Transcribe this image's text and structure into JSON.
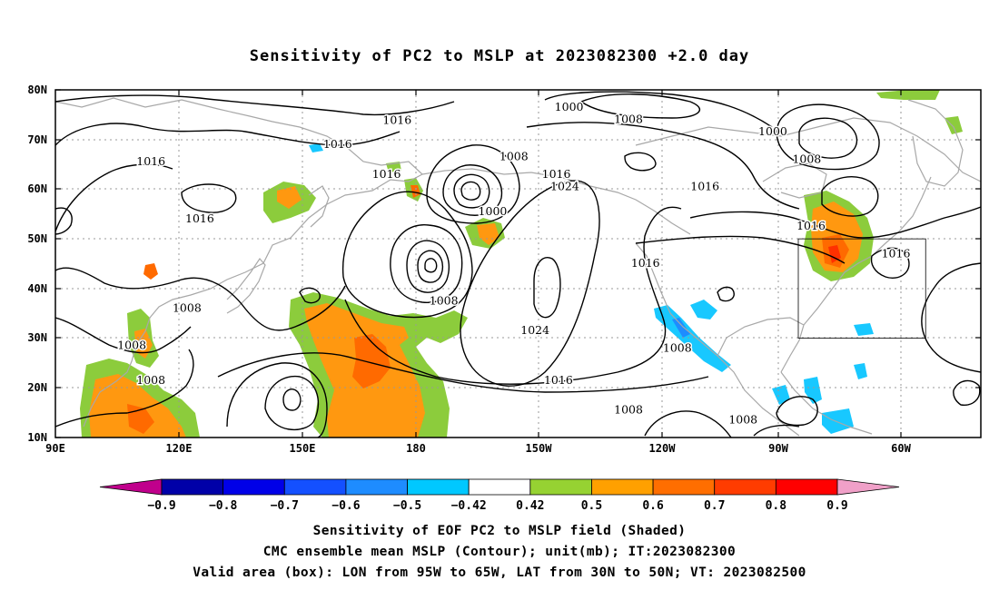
{
  "title": "Sensitivity of PC2 to MSLP at 2023082300 +2.0 day",
  "map": {
    "lon_labels": [
      "90E",
      "120E",
      "150E",
      "180",
      "150W",
      "120W",
      "90W",
      "60W"
    ],
    "lat_labels": [
      "80N",
      "70N",
      "60N",
      "50N",
      "40N",
      "30N",
      "20N",
      "10N"
    ],
    "grid": "dotted",
    "contour_labels": [
      {
        "text": "1016",
        "lon": 170.5,
        "lat": 73.3
      },
      {
        "text": "1000",
        "lon": 211,
        "lat": 76
      },
      {
        "text": "1008",
        "lon": 225,
        "lat": 73.5
      },
      {
        "text": "1000",
        "lon": 259,
        "lat": 71
      },
      {
        "text": "1016",
        "lon": 156.5,
        "lat": 68.5
      },
      {
        "text": "1016",
        "lon": 112.5,
        "lat": 65
      },
      {
        "text": "1008",
        "lon": 198,
        "lat": 66
      },
      {
        "text": "1008",
        "lon": 267,
        "lat": 65.5
      },
      {
        "text": "1016",
        "lon": 208,
        "lat": 62.5
      },
      {
        "text": "1016",
        "lon": 168,
        "lat": 62.5
      },
      {
        "text": "1024",
        "lon": 210,
        "lat": 60
      },
      {
        "text": "1016",
        "lon": 243,
        "lat": 60
      },
      {
        "text": "1016",
        "lon": 124,
        "lat": 53.5
      },
      {
        "text": "1000",
        "lon": 193,
        "lat": 55
      },
      {
        "text": "1016",
        "lon": 268,
        "lat": 52
      },
      {
        "text": "1016",
        "lon": 288,
        "lat": 46.5
      },
      {
        "text": "1016",
        "lon": 229,
        "lat": 44.5
      },
      {
        "text": "1008",
        "lon": 181.5,
        "lat": 37
      },
      {
        "text": "1008",
        "lon": 121,
        "lat": 35.5
      },
      {
        "text": "1024",
        "lon": 203,
        "lat": 31
      },
      {
        "text": "1008",
        "lon": 108,
        "lat": 28
      },
      {
        "text": "1008",
        "lon": 236.5,
        "lat": 27.5
      },
      {
        "text": "1016",
        "lon": 208.5,
        "lat": 21
      },
      {
        "text": "1008",
        "lon": 112.5,
        "lat": 21
      },
      {
        "text": "1008",
        "lon": 225,
        "lat": 15
      },
      {
        "text": "1008",
        "lon": 252,
        "lat": 13
      }
    ],
    "valid_box": {
      "lon_min": 265,
      "lon_max": 295,
      "lat_min": 30,
      "lat_max": 50
    }
  },
  "colorbar": {
    "labels": [
      "-0.9",
      "-0.8",
      "-0.7",
      "-0.6",
      "-0.5",
      "-0.42",
      "0.42",
      "0.5",
      "0.6",
      "0.7",
      "0.8",
      "0.9"
    ],
    "colors": [
      "#c0008c",
      "#0000a8",
      "#0000e8",
      "#1450ff",
      "#1e8cff",
      "#00c8ff",
      "#ffffff",
      "#96d232",
      "#ffa000",
      "#ff6e00",
      "#ff3c00",
      "#ff0000",
      "#f0a0c8"
    ]
  },
  "shading_colors": {
    "green": "#8ccc3c",
    "orange": "#ff9810",
    "dark_orange": "#ff6a00",
    "red": "#ff3000",
    "light_blue": "#18c8ff",
    "mid_blue": "#1e8cff"
  },
  "caption": {
    "line1": "Sensitivity of EOF PC2 to MSLP field (Shaded)",
    "line2": "CMC ensemble mean MSLP (Contour); unit(mb); IT:2023082300",
    "line3": "Valid area (box): LON from 95W to 65W, LAT from 30N to 50N; VT: 2023082500"
  }
}
